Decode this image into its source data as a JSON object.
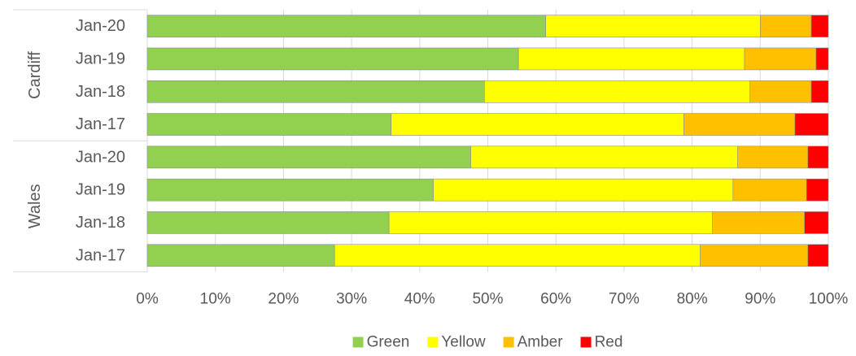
{
  "chart_data": {
    "type": "bar",
    "orientation": "horizontal",
    "stacked": "100%",
    "groups": [
      {
        "name": "Cardiff",
        "categories": [
          "Jan-20",
          "Jan-19",
          "Jan-18",
          "Jan-17"
        ]
      },
      {
        "name": "Wales",
        "categories": [
          "Jan-20",
          "Jan-19",
          "Jan-18",
          "Jan-17"
        ]
      }
    ],
    "series": [
      {
        "name": "Green",
        "color": "#92d050",
        "values": [
          58.5,
          54.5,
          49.5,
          35.8,
          47.5,
          42.0,
          35.5,
          27.5
        ]
      },
      {
        "name": "Yellow",
        "color": "#ffff00",
        "values": [
          31.5,
          33.2,
          39.0,
          43.0,
          39.2,
          44.0,
          47.5,
          53.7
        ]
      },
      {
        "name": "Amber",
        "color": "#ffc000",
        "values": [
          7.5,
          10.5,
          9.0,
          16.3,
          10.3,
          10.8,
          13.5,
          15.8
        ]
      },
      {
        "name": "Red",
        "color": "#ff0000",
        "values": [
          2.5,
          1.8,
          2.5,
          4.9,
          3.0,
          3.2,
          3.5,
          3.0
        ]
      }
    ],
    "xlim": [
      0,
      100
    ],
    "xticks": [
      "0%",
      "10%",
      "20%",
      "30%",
      "40%",
      "50%",
      "60%",
      "70%",
      "80%",
      "90%",
      "100%"
    ],
    "grid": true,
    "legend": "bottom",
    "title": "",
    "xlabel": "",
    "ylabel": ""
  }
}
